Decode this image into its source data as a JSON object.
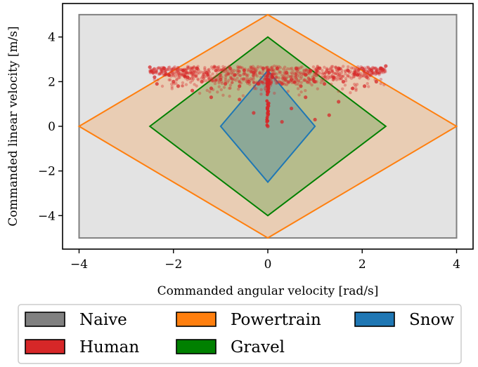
{
  "chart_data": {
    "type": "area",
    "xlabel": "Commanded angular velocity [rad/s]",
    "ylabel": "Commanded linear velocity [m/s]",
    "xlim": [
      -4.35,
      4.35
    ],
    "ylim": [
      -5.5,
      5.5
    ],
    "xticks": [
      -4,
      -2,
      0,
      2,
      4
    ],
    "yticks": [
      -4,
      -2,
      0,
      2,
      4
    ],
    "grid": false,
    "legend_placement": "below plot, 3 columns",
    "series": [
      {
        "name": "Naive",
        "kind": "rectangle",
        "edge_color": "#808080",
        "fill_color": "#e3e3e3",
        "points": [
          [
            -4,
            -5
          ],
          [
            4,
            -5
          ],
          [
            4,
            5
          ],
          [
            -4,
            5
          ]
        ]
      },
      {
        "name": "Powertrain",
        "kind": "diamond",
        "edge_color": "#ff7f0e",
        "fill_color": "#ff7f0e",
        "points": [
          [
            -4,
            0
          ],
          [
            0,
            5
          ],
          [
            4,
            0
          ],
          [
            0,
            -5
          ]
        ]
      },
      {
        "name": "Gravel",
        "kind": "diamond",
        "edge_color": "#008000",
        "fill_color": "#008000",
        "points": [
          [
            -2.5,
            0
          ],
          [
            0,
            4
          ],
          [
            2.5,
            0
          ],
          [
            0,
            -4
          ]
        ]
      },
      {
        "name": "Snow",
        "kind": "diamond",
        "edge_color": "#1f77b4",
        "fill_color": "#1f77b4",
        "points": [
          [
            -1,
            0
          ],
          [
            0,
            2.5
          ],
          [
            1,
            0
          ],
          [
            0,
            -2.5
          ]
        ]
      },
      {
        "name": "Human",
        "kind": "scatter",
        "color": "#d62728",
        "description": "dense band of commands with linear velocity 1.6–2.7 m/s spanning angular velocity -2.5 to 2.5 rad/s, plus a vertical cluster at angular velocity 0 from 0 to 2.5 m/s",
        "points": [
          [
            -2.5,
            2.65
          ],
          [
            -2.4,
            2.2
          ],
          [
            -2.35,
            1.9
          ],
          [
            -2.2,
            2.6
          ],
          [
            -2.1,
            2.3
          ],
          [
            -2.0,
            2.0
          ],
          [
            -1.9,
            1.8
          ],
          [
            -1.8,
            2.5
          ],
          [
            -1.7,
            2.2
          ],
          [
            -1.6,
            1.6
          ],
          [
            -1.5,
            2.6
          ],
          [
            -1.4,
            2.0
          ],
          [
            -1.3,
            2.4
          ],
          [
            -1.2,
            1.7
          ],
          [
            -1.1,
            2.5
          ],
          [
            -1.0,
            2.1
          ],
          [
            -0.9,
            1.9
          ],
          [
            -0.8,
            2.6
          ],
          [
            -0.7,
            2.3
          ],
          [
            -0.6,
            1.8
          ],
          [
            -0.5,
            2.5
          ],
          [
            -0.4,
            2.0
          ],
          [
            -0.3,
            2.4
          ],
          [
            -0.2,
            1.9
          ],
          [
            -0.1,
            2.6
          ],
          [
            0.0,
            2.5
          ],
          [
            0.0,
            2.0
          ],
          [
            0.0,
            1.5
          ],
          [
            0.0,
            1.0
          ],
          [
            0.0,
            0.5
          ],
          [
            0.0,
            0.0
          ],
          [
            0.1,
            2.2
          ],
          [
            0.2,
            2.6
          ],
          [
            0.3,
            1.9
          ],
          [
            0.4,
            2.4
          ],
          [
            0.5,
            2.1
          ],
          [
            0.6,
            2.6
          ],
          [
            0.7,
            1.8
          ],
          [
            0.8,
            2.3
          ],
          [
            0.9,
            2.5
          ],
          [
            1.0,
            2.0
          ],
          [
            1.1,
            2.6
          ],
          [
            1.2,
            1.9
          ],
          [
            1.3,
            2.4
          ],
          [
            1.4,
            2.2
          ],
          [
            1.5,
            2.6
          ],
          [
            1.6,
            2.0
          ],
          [
            1.7,
            2.5
          ],
          [
            1.8,
            1.7
          ],
          [
            1.9,
            2.3
          ],
          [
            2.0,
            2.6
          ],
          [
            2.05,
            1.8
          ],
          [
            2.1,
            2.2
          ],
          [
            2.2,
            2.5
          ],
          [
            2.3,
            2.0
          ],
          [
            2.4,
            2.6
          ],
          [
            2.5,
            2.7
          ],
          [
            -0.6,
            1.2
          ],
          [
            0.5,
            0.8
          ],
          [
            1.0,
            0.3
          ],
          [
            -0.3,
            0.6
          ],
          [
            0.8,
            1.3
          ],
          [
            1.5,
            1.1
          ],
          [
            -1.2,
            1.3
          ],
          [
            0.3,
            0.2
          ],
          [
            1.3,
            0.5
          ]
        ]
      }
    ]
  },
  "legend": {
    "items": [
      {
        "label": "Naive",
        "color": "#808080"
      },
      {
        "label": "Powertrain",
        "color": "#ff7f0e"
      },
      {
        "label": "Snow",
        "color": "#1f77b4"
      },
      {
        "label": "Human",
        "color": "#d62728"
      },
      {
        "label": "Gravel",
        "color": "#008000"
      }
    ]
  }
}
